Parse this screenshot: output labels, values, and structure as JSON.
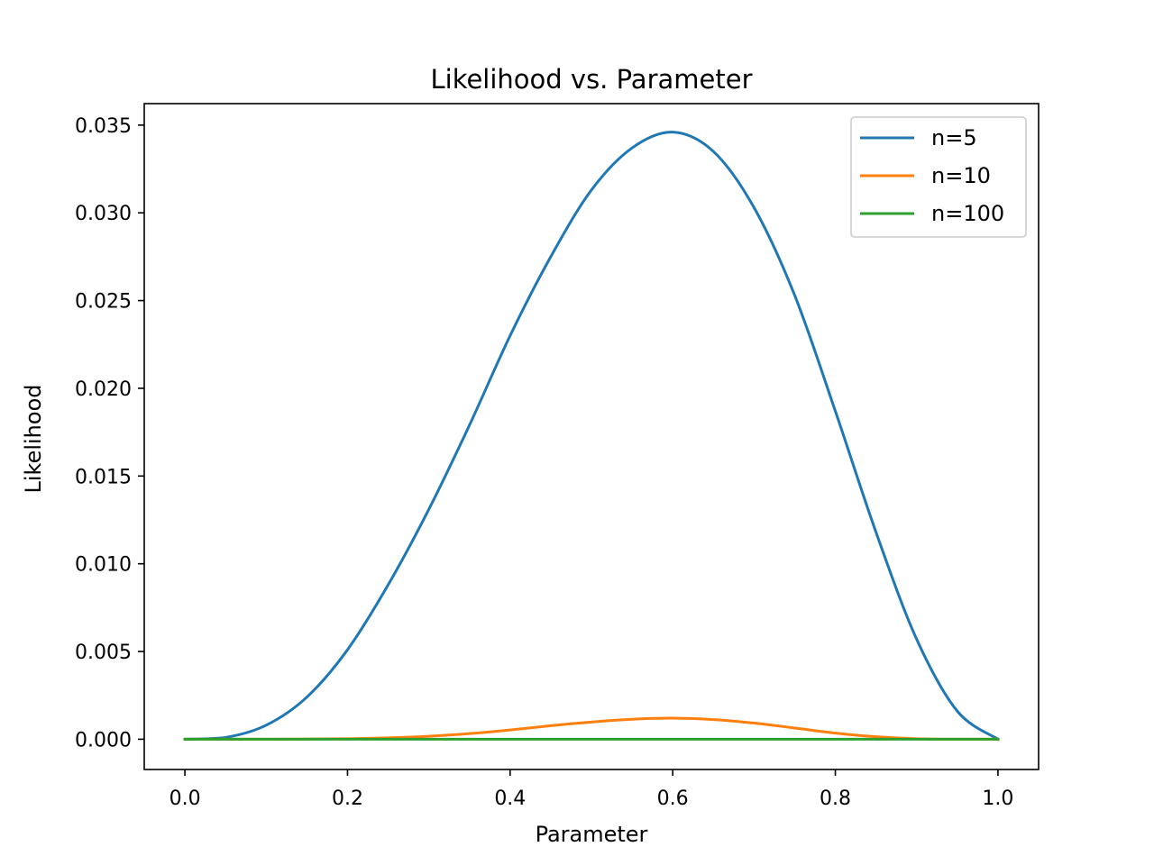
{
  "chart_data": {
    "type": "line",
    "title": "Likelihood vs. Parameter",
    "xlabel": "Parameter",
    "ylabel": "Likelihood",
    "xlim": [
      -0.05,
      1.05
    ],
    "ylim": [
      -0.001725,
      0.036225
    ],
    "xticks": [
      0.0,
      0.2,
      0.4,
      0.6,
      0.8,
      1.0
    ],
    "xtick_labels": [
      "0.0",
      "0.2",
      "0.4",
      "0.6",
      "0.8",
      "1.0"
    ],
    "yticks": [
      0.0,
      0.005,
      0.01,
      0.015,
      0.02,
      0.025,
      0.03,
      0.035
    ],
    "ytick_labels": [
      "0.000",
      "0.005",
      "0.010",
      "0.015",
      "0.020",
      "0.025",
      "0.030",
      "0.035"
    ],
    "grid": false,
    "legend_position": "top-right",
    "series": [
      {
        "name": "n=5",
        "color": "#1f77b4",
        "x": [
          0.0,
          0.05,
          0.1,
          0.15,
          0.2,
          0.25,
          0.3,
          0.35,
          0.4,
          0.45,
          0.5,
          0.55,
          0.6,
          0.65,
          0.7,
          0.75,
          0.8,
          0.85,
          0.9,
          0.95,
          1.0
        ],
        "y": [
          0.0,
          0.0001,
          0.0008,
          0.0024,
          0.0051,
          0.0088,
          0.0131,
          0.0179,
          0.023,
          0.0275,
          0.0313,
          0.0337,
          0.0346,
          0.0335,
          0.0303,
          0.0253,
          0.0187,
          0.0118,
          0.0057,
          0.0016,
          0.0
        ]
      },
      {
        "name": "n=10",
        "color": "#ff7f0e",
        "x": [
          0.0,
          0.05,
          0.1,
          0.15,
          0.2,
          0.25,
          0.3,
          0.35,
          0.4,
          0.45,
          0.5,
          0.55,
          0.6,
          0.65,
          0.7,
          0.75,
          0.8,
          0.85,
          0.9,
          0.95,
          1.0
        ],
        "y": [
          0.0,
          0.0,
          0.0,
          1e-05,
          3e-05,
          8e-05,
          0.00017,
          0.00032,
          0.00053,
          0.00077,
          0.00098,
          0.00114,
          0.0012,
          0.00112,
          0.00092,
          0.00064,
          0.00035,
          0.00014,
          3e-05,
          0.0,
          0.0
        ]
      },
      {
        "name": "n=100",
        "color": "#2ca02c",
        "x": [
          0.0,
          0.1,
          0.2,
          0.3,
          0.4,
          0.5,
          0.6,
          0.7,
          0.8,
          0.9,
          1.0
        ],
        "y": [
          0.0,
          0.0,
          0.0,
          0.0,
          0.0,
          0.0,
          0.0,
          0.0,
          0.0,
          0.0,
          0.0
        ]
      }
    ]
  }
}
